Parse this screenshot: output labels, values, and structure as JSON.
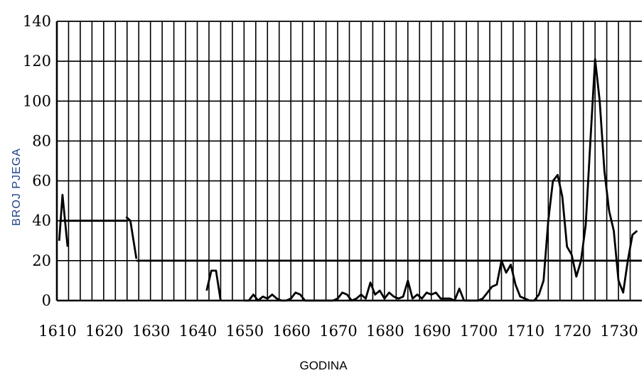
{
  "chart_data": {
    "type": "line",
    "title": "",
    "xlabel": "GODINA",
    "ylabel": "BROJ PJEGA",
    "xlim": [
      1610,
      1735
    ],
    "ylim": [
      0,
      140
    ],
    "x_ticks": [
      1610,
      1620,
      1630,
      1640,
      1650,
      1660,
      1670,
      1680,
      1690,
      1700,
      1710,
      1720,
      1730
    ],
    "y_ticks": [
      0,
      20,
      40,
      60,
      80,
      100,
      120,
      140
    ],
    "grid": true,
    "series": [
      {
        "points": [
          [
            1610.5,
            30
          ],
          [
            1611.2,
            53
          ],
          [
            1612.3,
            27
          ]
        ]
      },
      {
        "points": [
          [
            1610.5,
            40
          ],
          [
            1625,
            40
          ]
        ]
      },
      {
        "points": [
          [
            1624.8,
            42
          ],
          [
            1625.7,
            40
          ],
          [
            1627,
            21
          ]
        ]
      },
      {
        "points": [
          [
            1627,
            20
          ],
          [
            1735,
            20
          ]
        ]
      },
      {
        "points": [
          [
            1642,
            5
          ],
          [
            1643,
            15
          ],
          [
            1644,
            15
          ],
          [
            1645,
            0
          ]
        ]
      },
      {
        "points": [
          [
            1650,
            0
          ],
          [
            1651,
            0
          ],
          [
            1652,
            3
          ],
          [
            1653,
            0
          ],
          [
            1654,
            2
          ],
          [
            1655,
            1
          ],
          [
            1656,
            3
          ],
          [
            1657,
            1
          ],
          [
            1658,
            0
          ],
          [
            1659,
            0
          ],
          [
            1660,
            1
          ],
          [
            1661,
            4
          ],
          [
            1662,
            3
          ],
          [
            1663,
            0
          ],
          [
            1666,
            0
          ],
          [
            1669,
            0
          ],
          [
            1670,
            1
          ],
          [
            1671,
            4
          ],
          [
            1672,
            3
          ],
          [
            1673,
            0
          ],
          [
            1674,
            1
          ],
          [
            1675,
            3
          ],
          [
            1676,
            1
          ],
          [
            1677,
            9
          ],
          [
            1678,
            3
          ],
          [
            1679,
            5
          ],
          [
            1680,
            1
          ],
          [
            1681,
            4
          ],
          [
            1682,
            2
          ],
          [
            1683,
            1
          ],
          [
            1684,
            2
          ],
          [
            1685,
            10
          ],
          [
            1686,
            1
          ],
          [
            1687,
            3
          ],
          [
            1688,
            1
          ],
          [
            1689,
            4
          ],
          [
            1690,
            3
          ],
          [
            1691,
            4
          ],
          [
            1692,
            1
          ],
          [
            1693,
            1
          ],
          [
            1694,
            1
          ],
          [
            1695,
            0
          ],
          [
            1696,
            6
          ],
          [
            1697,
            0
          ],
          [
            1698,
            0
          ],
          [
            1699,
            0
          ],
          [
            1700,
            0
          ],
          [
            1701,
            1
          ],
          [
            1702,
            4
          ],
          [
            1703,
            7
          ],
          [
            1704,
            8
          ],
          [
            1705,
            20
          ],
          [
            1706,
            14
          ],
          [
            1707,
            18
          ],
          [
            1708,
            8
          ],
          [
            1709,
            2
          ],
          [
            1710,
            1
          ],
          [
            1711,
            0
          ],
          [
            1712,
            0
          ],
          [
            1713,
            3
          ],
          [
            1714,
            10
          ],
          [
            1715,
            40
          ],
          [
            1716,
            60
          ],
          [
            1717,
            63
          ],
          [
            1718,
            52
          ],
          [
            1719,
            27
          ],
          [
            1720,
            23
          ],
          [
            1721,
            12
          ],
          [
            1722,
            20
          ],
          [
            1723,
            38
          ],
          [
            1724,
            80
          ],
          [
            1725,
            121
          ],
          [
            1726,
            100
          ],
          [
            1727,
            65
          ],
          [
            1728,
            45
          ],
          [
            1729,
            35
          ],
          [
            1730,
            10
          ],
          [
            1731,
            4
          ],
          [
            1732,
            20
          ],
          [
            1733,
            33
          ],
          [
            1734,
            35
          ]
        ]
      }
    ]
  }
}
